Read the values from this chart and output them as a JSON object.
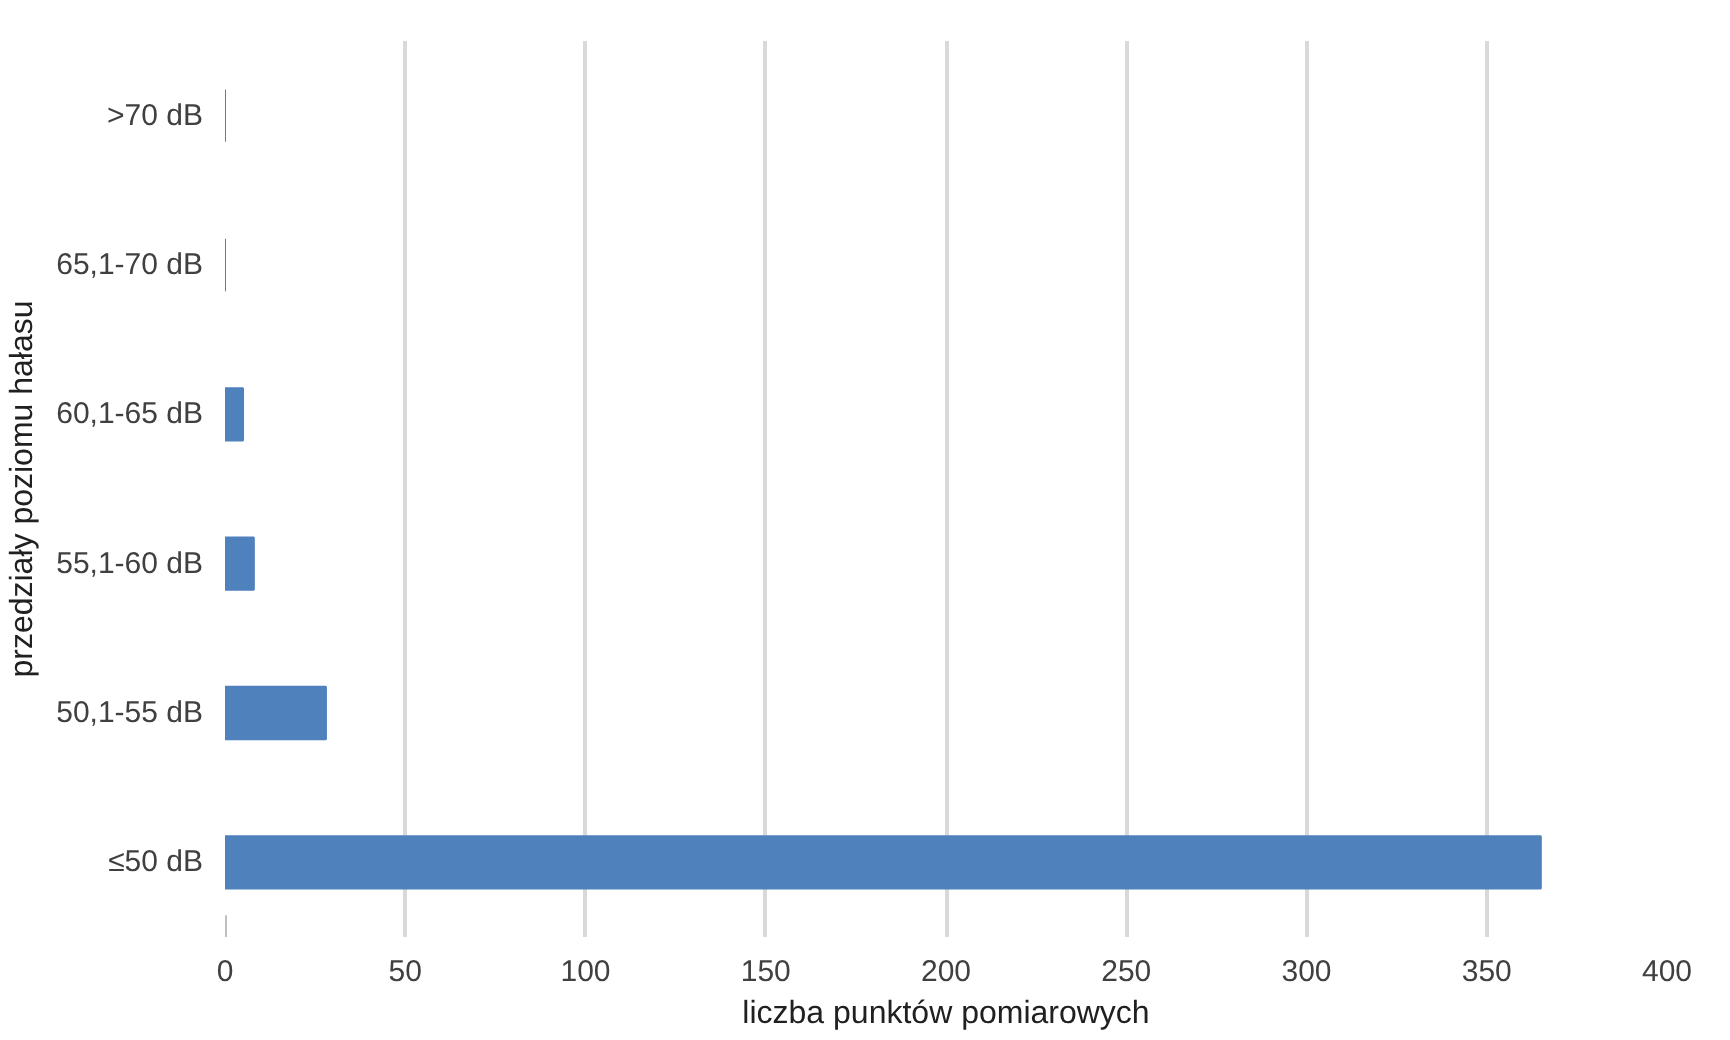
{
  "chart_data": {
    "type": "bar",
    "orientation": "horizontal",
    "xlabel": "liczba punktów pomiarowych",
    "ylabel": "przedziały poziomu hałasu",
    "categories": [
      ">70 dB",
      "65,1-70 dB",
      "60,1-65 dB",
      "55,1-60 dB",
      "50,1-55 dB",
      "≤50 dB"
    ],
    "values": [
      0,
      0,
      5,
      8,
      28,
      365
    ],
    "color": "#4f81bd",
    "xlim": [
      0,
      400
    ],
    "xticks": [
      0,
      50,
      100,
      150,
      200,
      250,
      300,
      350,
      400
    ],
    "grid": "x"
  }
}
